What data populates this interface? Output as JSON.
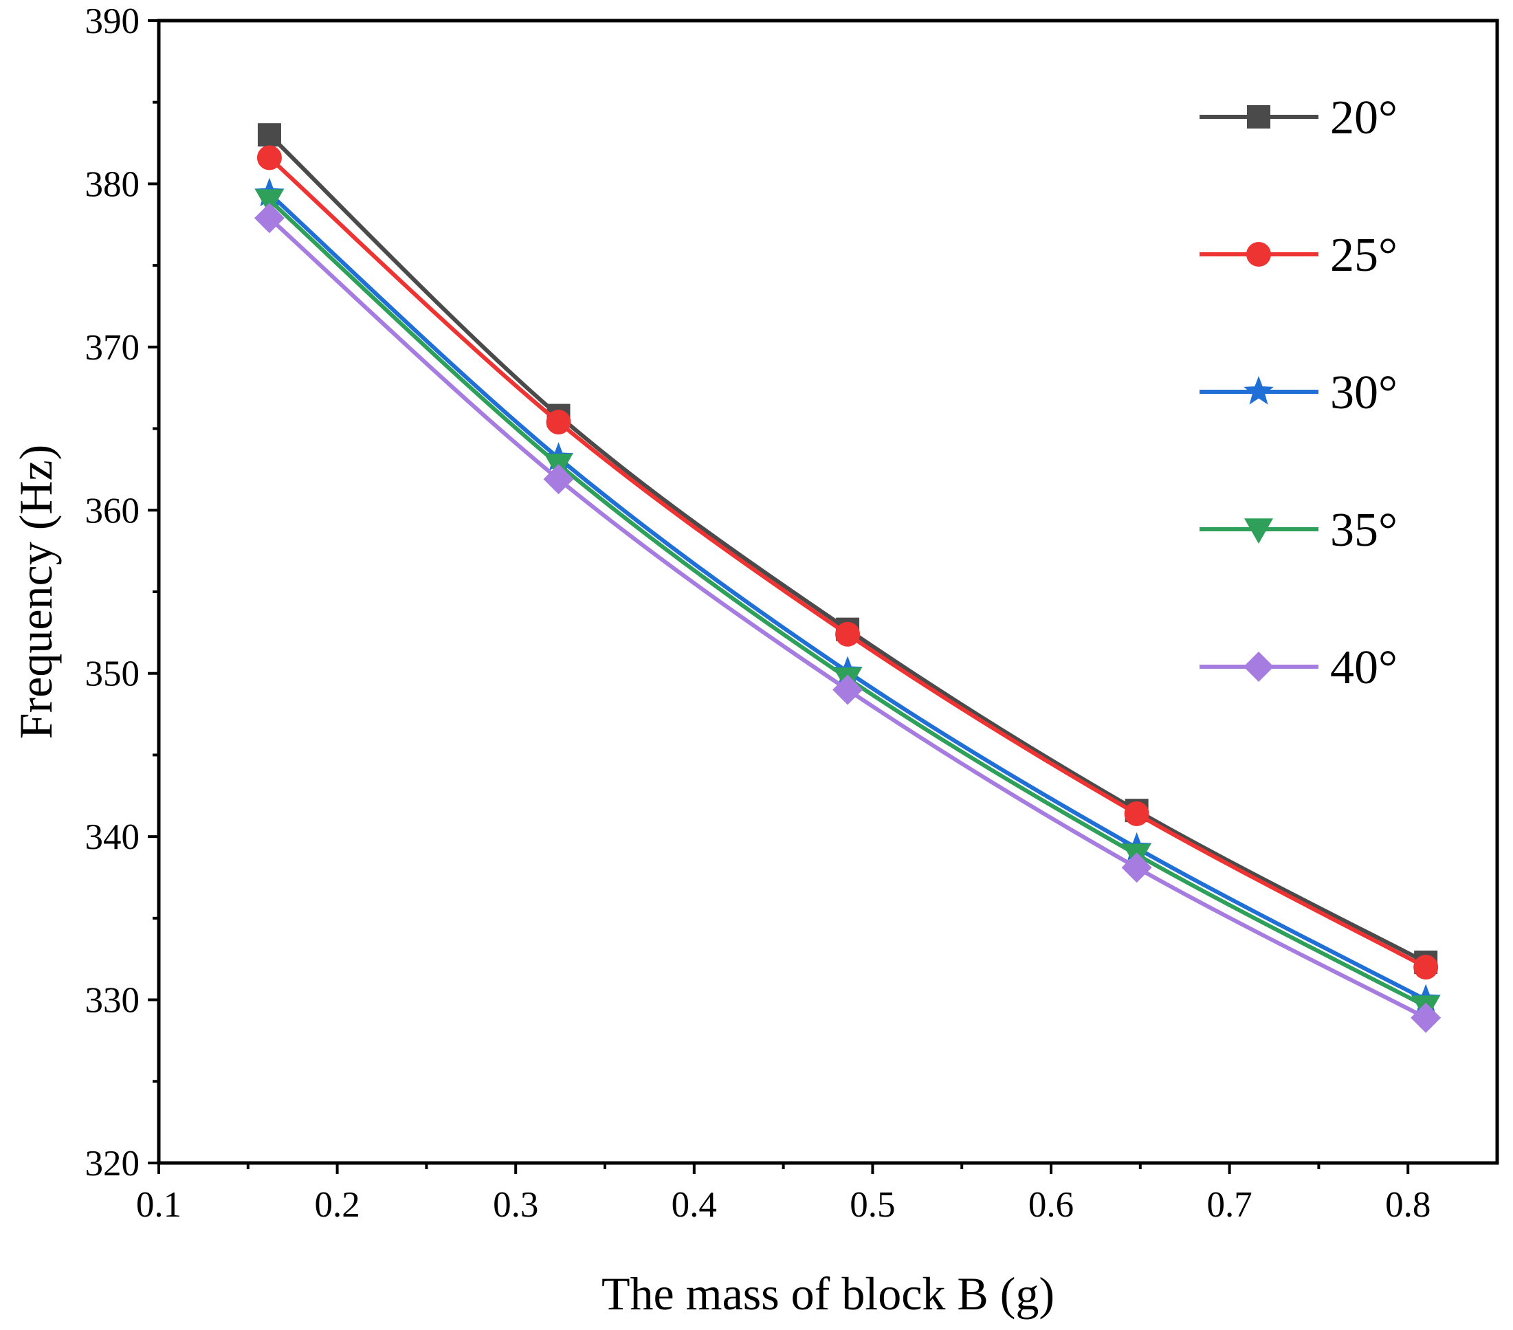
{
  "chart_data": {
    "type": "line",
    "title": "",
    "xlabel": "The mass of block B (g)",
    "ylabel": "Frequency (Hz)",
    "xlim": [
      0.1,
      0.85
    ],
    "ylim": [
      320,
      390
    ],
    "xticks": [
      0.1,
      0.2,
      0.3,
      0.4,
      0.5,
      0.6,
      0.7,
      0.8
    ],
    "xtick_labels": [
      "0.1",
      "0.2",
      "0.3",
      "0.4",
      "0.5",
      "0.6",
      "0.7",
      "0.8"
    ],
    "yticks": [
      320,
      330,
      340,
      350,
      360,
      370,
      380,
      390
    ],
    "ytick_labels": [
      "320",
      "330",
      "340",
      "350",
      "360",
      "370",
      "380",
      "390"
    ],
    "grid": false,
    "legend_position": "top-right",
    "x": [
      0.162,
      0.324,
      0.486,
      0.648,
      0.81
    ],
    "series": [
      {
        "name": "20°",
        "marker": "square",
        "color": "#4a4a4a",
        "values": [
          383.0,
          365.8,
          352.7,
          341.6,
          332.3
        ]
      },
      {
        "name": "25°",
        "marker": "circle",
        "color": "#ee3333",
        "values": [
          381.6,
          365.4,
          352.4,
          341.4,
          332.0
        ]
      },
      {
        "name": "30°",
        "marker": "star",
        "color": "#1f6fd6",
        "values": [
          379.4,
          363.2,
          350.1,
          339.3,
          330.0
        ]
      },
      {
        "name": "35°",
        "marker": "triangle-down",
        "color": "#2ea05a",
        "values": [
          379.0,
          362.8,
          349.7,
          338.9,
          329.6
        ]
      },
      {
        "name": "40°",
        "marker": "diamond",
        "color": "#a77ce0",
        "values": [
          377.9,
          361.9,
          349.0,
          338.1,
          328.9
        ]
      }
    ]
  }
}
